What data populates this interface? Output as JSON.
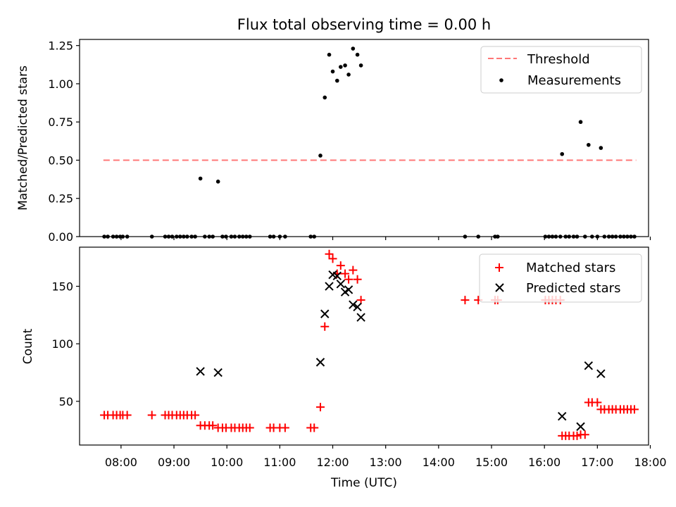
{
  "chart_data": [
    {
      "type": "scatter",
      "title": "Flux total observing time = 0.00 h",
      "xlabel": "",
      "ylabel": "Matched/Predicted stars",
      "xlim": [
        "07:13",
        "17:58"
      ],
      "ylim": [
        0,
        1.29
      ],
      "yticks": [
        "0.00",
        "0.25",
        "0.50",
        "0.75",
        "1.00",
        "1.25"
      ],
      "legend_position": "top-right",
      "threshold": {
        "name": "Threshold",
        "value": 0.5,
        "x_start": "07:40",
        "x_end": "17:44",
        "color": "#ff7777"
      },
      "series": [
        {
          "name": "Measurements",
          "color": "#000000",
          "marker": "dot",
          "points": [
            [
              "07:41",
              0
            ],
            [
              "07:45",
              0
            ],
            [
              "07:51",
              0
            ],
            [
              "07:55",
              0
            ],
            [
              "07:59",
              0
            ],
            [
              "08:02",
              0
            ],
            [
              "08:07",
              0
            ],
            [
              "08:35",
              0
            ],
            [
              "08:50",
              0
            ],
            [
              "08:54",
              0
            ],
            [
              "08:58",
              0
            ],
            [
              "09:03",
              0
            ],
            [
              "09:07",
              0
            ],
            [
              "09:11",
              0
            ],
            [
              "09:15",
              0
            ],
            [
              "09:20",
              0
            ],
            [
              "09:24",
              0
            ],
            [
              "09:30",
              0.38
            ],
            [
              "09:35",
              0
            ],
            [
              "09:40",
              0
            ],
            [
              "09:44",
              0
            ],
            [
              "09:50",
              0.36
            ],
            [
              "09:55",
              0
            ],
            [
              "09:59",
              0
            ],
            [
              "10:05",
              0
            ],
            [
              "10:09",
              0
            ],
            [
              "10:14",
              0
            ],
            [
              "10:18",
              0
            ],
            [
              "10:22",
              0
            ],
            [
              "10:26",
              0
            ],
            [
              "10:49",
              0
            ],
            [
              "10:53",
              0
            ],
            [
              "11:00",
              0
            ],
            [
              "11:06",
              0
            ],
            [
              "11:35",
              0
            ],
            [
              "11:39",
              0
            ],
            [
              "11:46",
              0.53
            ],
            [
              "11:51",
              0.91
            ],
            [
              "11:56",
              1.19
            ],
            [
              "12:00",
              1.08
            ],
            [
              "12:05",
              1.02
            ],
            [
              "12:09",
              1.11
            ],
            [
              "12:14",
              1.12
            ],
            [
              "12:18",
              1.06
            ],
            [
              "12:23",
              1.23
            ],
            [
              "12:28",
              1.19
            ],
            [
              "12:32",
              1.12
            ],
            [
              "14:30",
              0
            ],
            [
              "14:45",
              0
            ],
            [
              "15:04",
              0
            ],
            [
              "15:07",
              0
            ],
            [
              "16:01",
              0
            ],
            [
              "16:05",
              0
            ],
            [
              "16:09",
              0
            ],
            [
              "16:13",
              0
            ],
            [
              "16:18",
              0
            ],
            [
              "16:20",
              0.54
            ],
            [
              "16:24",
              0
            ],
            [
              "16:28",
              0
            ],
            [
              "16:33",
              0
            ],
            [
              "16:37",
              0
            ],
            [
              "16:41",
              0.75
            ],
            [
              "16:46",
              0
            ],
            [
              "16:50",
              0.6
            ],
            [
              "16:54",
              0
            ],
            [
              "17:00",
              0
            ],
            [
              "17:04",
              0.58
            ],
            [
              "17:08",
              0
            ],
            [
              "17:13",
              0
            ],
            [
              "17:17",
              0
            ],
            [
              "17:21",
              0
            ],
            [
              "17:26",
              0
            ],
            [
              "17:30",
              0
            ],
            [
              "17:34",
              0
            ],
            [
              "17:38",
              0
            ],
            [
              "17:42",
              0
            ]
          ]
        }
      ]
    },
    {
      "type": "scatter",
      "title": "",
      "xlabel": "Time (UTC)",
      "ylabel": "Count",
      "xlim": [
        "07:13",
        "17:58"
      ],
      "ylim": [
        12,
        184
      ],
      "yticks": [
        "50",
        "100",
        "150"
      ],
      "xticks": [
        "08:00",
        "09:00",
        "10:00",
        "11:00",
        "12:00",
        "13:00",
        "14:00",
        "15:00",
        "16:00",
        "17:00",
        "18:00"
      ],
      "legend_position": "top-right",
      "series": [
        {
          "name": "Matched stars",
          "color": "#ff0000",
          "marker": "plus",
          "points": [
            [
              "07:41",
              38
            ],
            [
              "07:45",
              38
            ],
            [
              "07:51",
              38
            ],
            [
              "07:55",
              38
            ],
            [
              "07:59",
              38
            ],
            [
              "08:02",
              38
            ],
            [
              "08:07",
              38
            ],
            [
              "08:35",
              38
            ],
            [
              "08:50",
              38
            ],
            [
              "08:54",
              38
            ],
            [
              "08:58",
              38
            ],
            [
              "09:03",
              38
            ],
            [
              "09:07",
              38
            ],
            [
              "09:11",
              38
            ],
            [
              "09:15",
              38
            ],
            [
              "09:20",
              38
            ],
            [
              "09:24",
              38
            ],
            [
              "09:30",
              29
            ],
            [
              "09:35",
              29
            ],
            [
              "09:40",
              29
            ],
            [
              "09:44",
              29
            ],
            [
              "09:50",
              27
            ],
            [
              "09:55",
              27
            ],
            [
              "09:59",
              27
            ],
            [
              "10:05",
              27
            ],
            [
              "10:09",
              27
            ],
            [
              "10:14",
              27
            ],
            [
              "10:18",
              27
            ],
            [
              "10:22",
              27
            ],
            [
              "10:26",
              27
            ],
            [
              "10:49",
              27
            ],
            [
              "10:53",
              27
            ],
            [
              "11:00",
              27
            ],
            [
              "11:06",
              27
            ],
            [
              "11:35",
              27
            ],
            [
              "11:39",
              27
            ],
            [
              "11:46",
              45
            ],
            [
              "11:51",
              115
            ],
            [
              "11:56",
              178
            ],
            [
              "12:00",
              174
            ],
            [
              "12:05",
              161
            ],
            [
              "12:09",
              168
            ],
            [
              "12:14",
              161
            ],
            [
              "12:18",
              156
            ],
            [
              "12:23",
              164
            ],
            [
              "12:28",
              156
            ],
            [
              "12:32",
              138
            ],
            [
              "14:30",
              138
            ],
            [
              "14:45",
              138
            ],
            [
              "15:04",
              138
            ],
            [
              "15:07",
              138
            ],
            [
              "16:01",
              138
            ],
            [
              "16:05",
              138
            ],
            [
              "16:09",
              138
            ],
            [
              "16:13",
              138
            ],
            [
              "16:18",
              138
            ],
            [
              "16:20",
              20
            ],
            [
              "16:24",
              20
            ],
            [
              "16:28",
              20
            ],
            [
              "16:33",
              20
            ],
            [
              "16:37",
              20
            ],
            [
              "16:41",
              21
            ],
            [
              "16:46",
              21
            ],
            [
              "16:50",
              49
            ],
            [
              "16:54",
              49
            ],
            [
              "17:00",
              49
            ],
            [
              "17:04",
              43
            ],
            [
              "17:08",
              43
            ],
            [
              "17:13",
              43
            ],
            [
              "17:17",
              43
            ],
            [
              "17:21",
              43
            ],
            [
              "17:26",
              43
            ],
            [
              "17:30",
              43
            ],
            [
              "17:34",
              43
            ],
            [
              "17:38",
              43
            ],
            [
              "17:42",
              43
            ]
          ]
        },
        {
          "name": "Predicted stars",
          "color": "#000000",
          "marker": "x",
          "points": [
            [
              "09:30",
              76
            ],
            [
              "09:50",
              75
            ],
            [
              "11:46",
              84
            ],
            [
              "11:51",
              126
            ],
            [
              "11:56",
              150
            ],
            [
              "12:00",
              160
            ],
            [
              "12:05",
              159
            ],
            [
              "12:09",
              152
            ],
            [
              "12:14",
              145
            ],
            [
              "12:18",
              147
            ],
            [
              "12:23",
              134
            ],
            [
              "12:28",
              132
            ],
            [
              "12:32",
              123
            ],
            [
              "16:20",
              37
            ],
            [
              "16:41",
              28
            ],
            [
              "16:50",
              81
            ],
            [
              "17:04",
              74
            ]
          ]
        }
      ]
    }
  ]
}
